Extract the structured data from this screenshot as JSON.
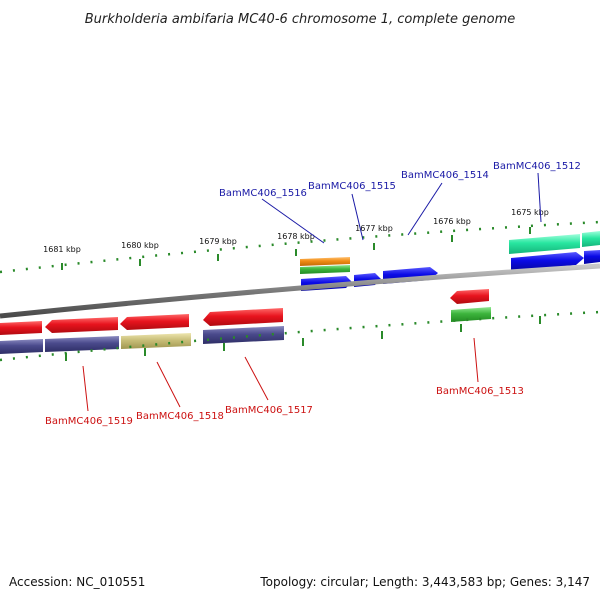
{
  "title": "Burkholderia ambifaria MC40-6 chromosome 1, complete genome",
  "footer": {
    "accession": "Accession: NC_010551",
    "summary": "Topology: circular; Length: 3,443,583 bp; Genes: 3,147"
  },
  "scale_labels": [
    "1681 kbp",
    "1680 kbp",
    "1679 kbp",
    "1678 kbp",
    "1677 kbp",
    "1676 kbp",
    "1675 kbp"
  ],
  "gene_labels_forward": [
    "BamMC406_1516",
    "BamMC406_1515",
    "BamMC406_1514",
    "BamMC406_1512"
  ],
  "gene_labels_reverse": [
    "BamMC406_1519",
    "BamMC406_1518",
    "BamMC406_1517",
    "BamMC406_1513"
  ],
  "colors": {
    "backbone": "#8a8a8a",
    "forward_label": "#1a1aa6",
    "reverse_label": "#cc1111",
    "tick": "#2a8a2a",
    "red": "#e8141e",
    "blue": "#0a0ae6",
    "navy": "#4a4a8c",
    "olive": "#c8be78",
    "orange": "#f08c14",
    "green": "#3cb43c",
    "teal": "#28e6a0"
  }
}
